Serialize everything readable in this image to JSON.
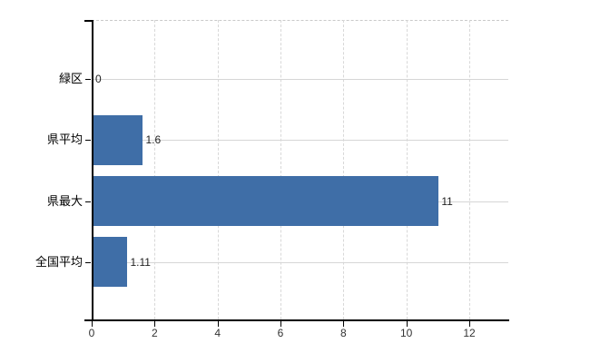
{
  "chart_data": {
    "type": "bar",
    "orientation": "horizontal",
    "title": "",
    "categories": [
      "緑区",
      "県平均",
      "県最大",
      "全国平均"
    ],
    "values": [
      0,
      1.6,
      11,
      1.11
    ],
    "value_labels": [
      "0",
      "1.6",
      "11",
      "1.11"
    ],
    "x_tick_labels": [
      "0",
      "2",
      "4",
      "6",
      "8",
      "10",
      "12"
    ],
    "x_tick_values": [
      0,
      2,
      4,
      6,
      8,
      10,
      12
    ],
    "xlim": [
      0,
      13.24
    ],
    "ylabel": "",
    "xlabel": "",
    "grid": "on",
    "legend": "none",
    "bar_color": "#3F6EA7",
    "axis_color": "#000000",
    "background_color": "#FFFFFF"
  }
}
